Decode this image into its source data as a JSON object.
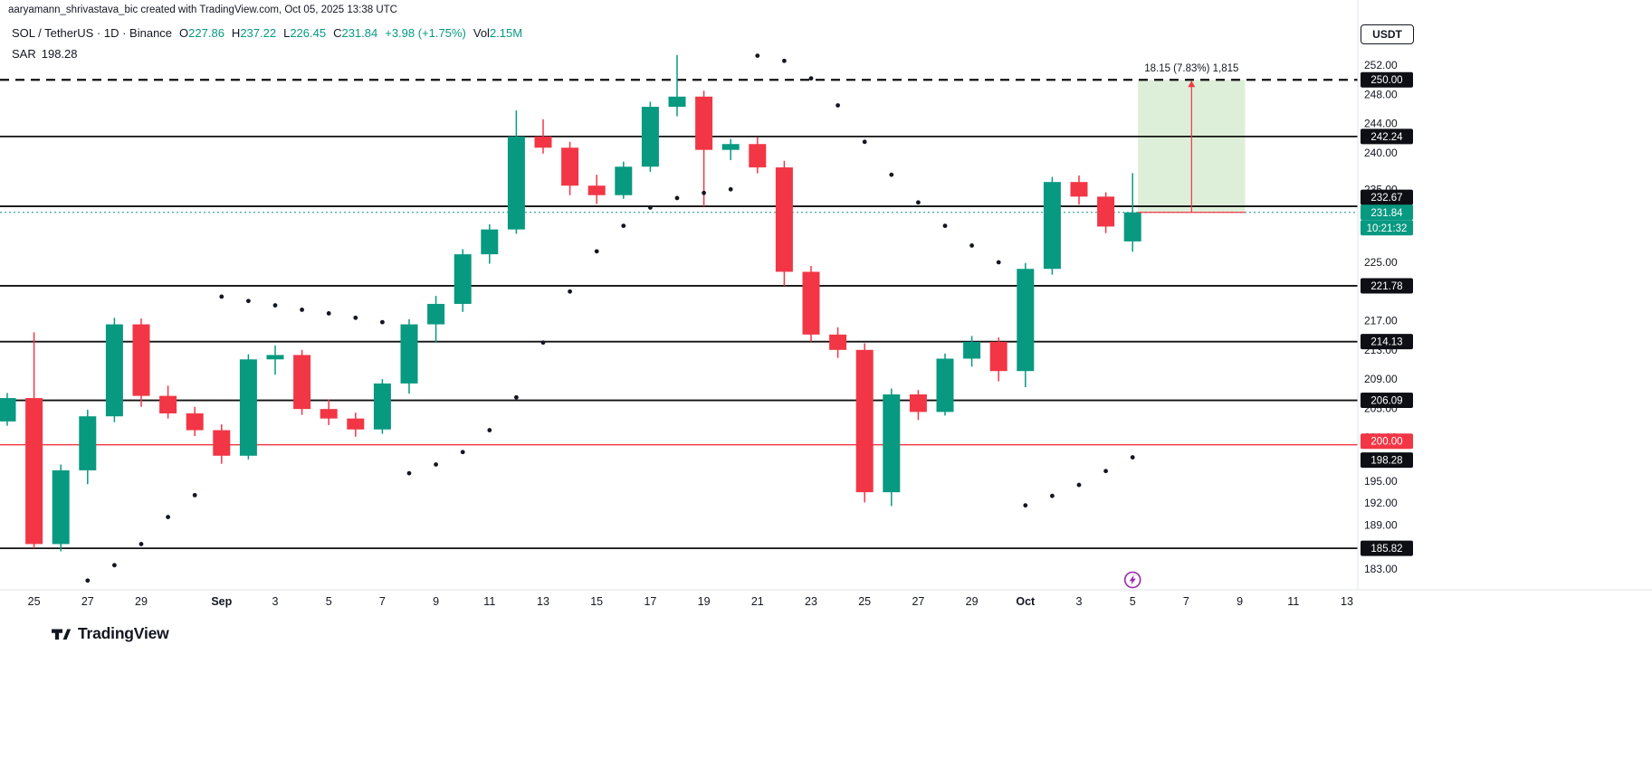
{
  "attribution": "aaryamann_shrivastava_bic created with TradingView.com, Oct 05, 2025 13:38 UTC",
  "legend": {
    "title": "SOL / TetherUS · 1D · Binance",
    "o_label": "O",
    "o": "227.86",
    "h_label": "H",
    "h": "237.22",
    "l_label": "L",
    "l": "226.45",
    "c_label": "C",
    "c": "231.84",
    "change": "+3.98 (+1.75%)",
    "vol_label": "Vol",
    "vol": "2.15M",
    "sar_label": "SAR",
    "sar_value": "198.28"
  },
  "price_axis": {
    "currency_label": "USDT"
  },
  "footer": {
    "brand": "TradingView"
  },
  "colors": {
    "up": "#089981",
    "down": "#F23645",
    "line_black": "#111111",
    "sar": "#131722",
    "badge": "#0D0F14",
    "range_fill": "rgba(103,183,82,0.22)",
    "marker": "#9C27B0"
  },
  "chart_data": {
    "type": "candlestick",
    "symbol": "SOL/USDT",
    "interval": "1D",
    "exchange": "Binance",
    "price_scale": {
      "min": 181.0,
      "max": 253.5
    },
    "current_price": 231.84,
    "countdown": "10:21:32",
    "candles": [
      {
        "t": "Aug 24",
        "o": 203.2,
        "h": 207.1,
        "l": 202.6,
        "c": 206.4
      },
      {
        "t": "Aug 25",
        "o": 206.4,
        "h": 215.4,
        "l": 185.82,
        "c": 186.4
      },
      {
        "t": "Aug 26",
        "o": 186.4,
        "h": 197.3,
        "l": 185.4,
        "c": 196.5
      },
      {
        "t": "Aug 27",
        "o": 196.5,
        "h": 204.8,
        "l": 194.6,
        "c": 203.9
      },
      {
        "t": "Aug 28",
        "o": 203.9,
        "h": 217.4,
        "l": 203.1,
        "c": 216.5
      },
      {
        "t": "Aug 29",
        "o": 216.5,
        "h": 217.3,
        "l": 205.2,
        "c": 206.7
      },
      {
        "t": "Aug 30",
        "o": 206.7,
        "h": 208.1,
        "l": 203.6,
        "c": 204.3
      },
      {
        "t": "Aug 31",
        "o": 204.3,
        "h": 205.2,
        "l": 201.2,
        "c": 202.0
      },
      {
        "t": "Sep 1",
        "o": 202.0,
        "h": 202.8,
        "l": 197.4,
        "c": 198.5
      },
      {
        "t": "Sep 2",
        "o": 198.5,
        "h": 212.4,
        "l": 198.0,
        "c": 211.7
      },
      {
        "t": "Sep 3",
        "o": 211.7,
        "h": 213.6,
        "l": 209.6,
        "c": 212.3
      },
      {
        "t": "Sep 4",
        "o": 212.3,
        "h": 213.0,
        "l": 204.1,
        "c": 204.9
      },
      {
        "t": "Sep 5",
        "o": 204.9,
        "h": 206.2,
        "l": 202.7,
        "c": 203.6
      },
      {
        "t": "Sep 6",
        "o": 203.6,
        "h": 204.4,
        "l": 201.1,
        "c": 202.1
      },
      {
        "t": "Sep 7",
        "o": 202.1,
        "h": 209.0,
        "l": 201.5,
        "c": 208.4
      },
      {
        "t": "Sep 8",
        "o": 208.4,
        "h": 217.2,
        "l": 207.0,
        "c": 216.5
      },
      {
        "t": "Sep 9",
        "o": 216.5,
        "h": 220.4,
        "l": 214.0,
        "c": 219.3
      },
      {
        "t": "Sep 10",
        "o": 219.3,
        "h": 226.8,
        "l": 218.2,
        "c": 226.1
      },
      {
        "t": "Sep 11",
        "o": 226.1,
        "h": 230.2,
        "l": 224.8,
        "c": 229.5
      },
      {
        "t": "Sep 12",
        "o": 229.5,
        "h": 245.8,
        "l": 228.9,
        "c": 242.24
      },
      {
        "t": "Sep 13",
        "o": 242.24,
        "h": 244.6,
        "l": 239.9,
        "c": 240.7
      },
      {
        "t": "Sep 14",
        "o": 240.7,
        "h": 241.5,
        "l": 234.2,
        "c": 235.5
      },
      {
        "t": "Sep 15",
        "o": 235.5,
        "h": 237.0,
        "l": 233.0,
        "c": 234.2
      },
      {
        "t": "Sep 16",
        "o": 234.2,
        "h": 238.8,
        "l": 233.7,
        "c": 238.1
      },
      {
        "t": "Sep 17",
        "o": 238.1,
        "h": 247.0,
        "l": 237.4,
        "c": 246.3
      },
      {
        "t": "Sep 18",
        "o": 246.3,
        "h": 253.4,
        "l": 245.0,
        "c": 247.7
      },
      {
        "t": "Sep 19",
        "o": 247.7,
        "h": 248.5,
        "l": 232.67,
        "c": 240.4
      },
      {
        "t": "Sep 20",
        "o": 240.4,
        "h": 241.9,
        "l": 239.0,
        "c": 241.2
      },
      {
        "t": "Sep 21",
        "o": 241.2,
        "h": 242.1,
        "l": 237.2,
        "c": 238.0
      },
      {
        "t": "Sep 22",
        "o": 238.0,
        "h": 238.9,
        "l": 221.78,
        "c": 223.7
      },
      {
        "t": "Sep 23",
        "o": 223.7,
        "h": 224.5,
        "l": 214.13,
        "c": 215.1
      },
      {
        "t": "Sep 24",
        "o": 215.1,
        "h": 216.1,
        "l": 211.9,
        "c": 213.0
      },
      {
        "t": "Sep 25",
        "o": 213.0,
        "h": 213.9,
        "l": 192.1,
        "c": 193.5
      },
      {
        "t": "Sep 26",
        "o": 193.5,
        "h": 207.7,
        "l": 191.6,
        "c": 206.9
      },
      {
        "t": "Sep 27",
        "o": 206.9,
        "h": 207.5,
        "l": 203.4,
        "c": 204.5
      },
      {
        "t": "Sep 28",
        "o": 204.5,
        "h": 212.5,
        "l": 204.0,
        "c": 211.8
      },
      {
        "t": "Sep 29",
        "o": 211.8,
        "h": 214.9,
        "l": 210.7,
        "c": 214.1
      },
      {
        "t": "Sep 30",
        "o": 214.1,
        "h": 214.7,
        "l": 208.7,
        "c": 210.1
      },
      {
        "t": "Oct 1",
        "o": 210.1,
        "h": 224.9,
        "l": 207.9,
        "c": 224.1
      },
      {
        "t": "Oct 2",
        "o": 224.1,
        "h": 236.7,
        "l": 223.3,
        "c": 236.0
      },
      {
        "t": "Oct 3",
        "o": 236.0,
        "h": 236.9,
        "l": 232.9,
        "c": 234.0
      },
      {
        "t": "Oct 4",
        "o": 234.0,
        "h": 234.6,
        "l": 229.0,
        "c": 229.9
      },
      {
        "t": "Oct 5",
        "o": 227.86,
        "h": 237.22,
        "l": 226.45,
        "c": 231.84
      }
    ],
    "sar_dots": [
      null,
      null,
      null,
      181.4,
      183.5,
      186.4,
      190.1,
      193.1,
      220.3,
      219.7,
      219.1,
      218.5,
      218.0,
      217.4,
      216.8,
      196.1,
      197.3,
      199.0,
      202.0,
      206.5,
      214.0,
      221.0,
      226.5,
      230.0,
      232.5,
      233.8,
      234.5,
      235.0,
      253.3,
      252.6,
      250.2,
      246.5,
      241.5,
      237.0,
      233.2,
      230.0,
      227.3,
      225.0,
      191.7,
      193.0,
      194.5,
      196.4,
      198.28
    ],
    "sar_badge": {
      "price": 198.28,
      "label": "198.28",
      "badge_dy": 3
    },
    "levels": [
      {
        "price": 250.0,
        "label": "250.00",
        "style": "dashed",
        "color": "black"
      },
      {
        "price": 242.24,
        "label": "242.24",
        "style": "solid",
        "color": "black"
      },
      {
        "price": 232.67,
        "label": "232.67",
        "style": "solid",
        "color": "black",
        "badge_dy": -10
      },
      {
        "price": 221.78,
        "label": "221.78",
        "style": "solid",
        "color": "black"
      },
      {
        "price": 214.13,
        "label": "214.13",
        "style": "solid",
        "color": "black"
      },
      {
        "price": 206.09,
        "label": "206.09",
        "style": "solid",
        "color": "black"
      },
      {
        "price": 200.0,
        "label": "200.00",
        "style": "solid",
        "color": "red",
        "badge_dy": -4
      },
      {
        "price": 185.82,
        "label": "185.82",
        "style": "solid",
        "color": "black"
      }
    ],
    "range_tool": {
      "price_from": 231.84,
      "price_to": 250.0,
      "index_from": 42.2,
      "index_to": 46.2,
      "label": "18.15 (7.83%) 1,815"
    },
    "event_marker": {
      "index": 42,
      "symbol": "lightning"
    },
    "y_ticks": [
      252,
      248,
      244,
      240,
      235,
      225,
      217,
      213,
      209,
      205,
      201,
      195,
      192,
      189,
      183
    ],
    "x_ticks": [
      {
        "i": 1,
        "label": "25"
      },
      {
        "i": 3,
        "label": "27"
      },
      {
        "i": 5,
        "label": "29"
      },
      {
        "i": 8,
        "label": "Sep",
        "bold": true
      },
      {
        "i": 10,
        "label": "3"
      },
      {
        "i": 12,
        "label": "5"
      },
      {
        "i": 14,
        "label": "7"
      },
      {
        "i": 16,
        "label": "9"
      },
      {
        "i": 18,
        "label": "11"
      },
      {
        "i": 20,
        "label": "13"
      },
      {
        "i": 22,
        "label": "15"
      },
      {
        "i": 24,
        "label": "17"
      },
      {
        "i": 26,
        "label": "19"
      },
      {
        "i": 28,
        "label": "21"
      },
      {
        "i": 30,
        "label": "23"
      },
      {
        "i": 32,
        "label": "25"
      },
      {
        "i": 34,
        "label": "27"
      },
      {
        "i": 36,
        "label": "29"
      },
      {
        "i": 38,
        "label": "Oct",
        "bold": true
      },
      {
        "i": 40,
        "label": "3"
      },
      {
        "i": 42,
        "label": "5"
      },
      {
        "i": 44,
        "label": "7"
      },
      {
        "i": 46,
        "label": "9"
      },
      {
        "i": 48,
        "label": "11"
      },
      {
        "i": 50,
        "label": "13"
      }
    ],
    "total_slots": 51
  }
}
